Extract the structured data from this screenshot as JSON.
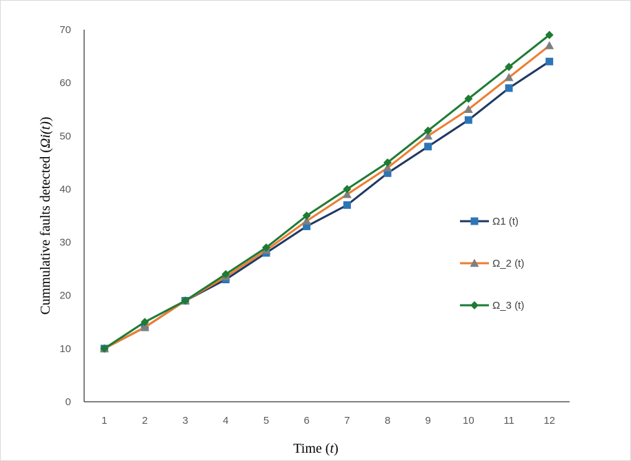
{
  "chart_data": {
    "type": "line",
    "x": [
      1,
      2,
      3,
      4,
      5,
      6,
      7,
      8,
      9,
      10,
      11,
      12
    ],
    "xlabel_text": "Time (",
    "xlabel_var": "t",
    "xlabel_close": ")",
    "ylabel_text": "Cummulative faults detected (",
    "ylabel_var": "Ωi(t)",
    "ylabel_close": ")",
    "ylim": [
      0,
      70
    ],
    "yticks": [
      0,
      10,
      20,
      30,
      40,
      50,
      60,
      70
    ],
    "grid": false,
    "legend_position": "right",
    "series": [
      {
        "name": "Ω1 (t)",
        "color": "#1f3864",
        "marker": "square",
        "marker_color": "#2e75b6",
        "values": [
          10,
          14,
          19,
          23,
          28,
          33,
          37,
          43,
          48,
          53,
          59,
          64
        ]
      },
      {
        "name": "Ω_2 (t)",
        "color": "#ed7d31",
        "marker": "triangle",
        "marker_color": "#7f7f7f",
        "values": [
          10,
          14,
          19,
          23.5,
          28.5,
          34,
          39,
          44,
          50,
          55,
          61,
          67
        ]
      },
      {
        "name": "Ω_3 (t)",
        "color": "#1e7b34",
        "marker": "diamond",
        "marker_color": "#1e7b34",
        "values": [
          10,
          15,
          19,
          24,
          29,
          35,
          40,
          45,
          51,
          57,
          63,
          69
        ]
      }
    ]
  }
}
